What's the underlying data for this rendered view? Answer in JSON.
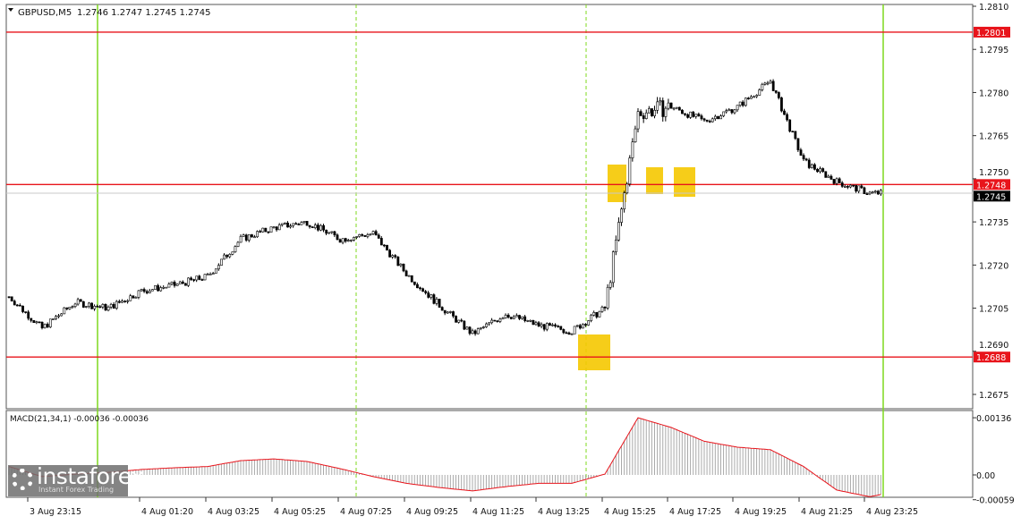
{
  "header": {
    "symbol": "GBPUSD,M5",
    "ohlc": "1.2746 1.2747 1.2745 1.2745"
  },
  "macd_label": "MACD(21,34,1) -0.00036 -0.00036",
  "logo": {
    "name": "instaforex",
    "tagline": "Instant Forex Trading"
  },
  "colors": {
    "level": "#e8141b",
    "bid": "#000000",
    "vline": "#7fd81e",
    "highlight": "#f5c800",
    "candle": "#000000",
    "macd_hist": "#a9a9a9",
    "macd_signal": "#e8141b"
  },
  "chart_data": [
    {
      "type": "candlestick",
      "timeframe": "M5",
      "ylim": [
        1.2675,
        1.281
      ],
      "y_ticks": [
        "1.2810",
        "1.2795",
        "1.2780",
        "1.2765",
        "1.2750",
        "1.2735",
        "1.2720",
        "1.2705",
        "1.2690",
        "1.2675"
      ],
      "x_ticks": [
        "3 Aug 23:15",
        "4 Aug 01:20",
        "4 Aug 03:25",
        "4 Aug 05:25",
        "4 Aug 07:25",
        "4 Aug 09:25",
        "4 Aug 11:25",
        "4 Aug 13:25",
        "4 Aug 15:25",
        "4 Aug 17:25",
        "4 Aug 19:25",
        "4 Aug 21:25",
        "4 Aug 23:25"
      ],
      "hourly_closes": [
        1.2709,
        1.2698,
        1.2707,
        1.2705,
        1.2711,
        1.2713,
        1.2716,
        1.2729,
        1.2733,
        1.2735,
        1.2729,
        1.2731,
        1.2717,
        1.2706,
        1.2696,
        1.2703,
        1.2699,
        1.2697,
        1.2705,
        1.2773,
        1.2775,
        1.277,
        1.2775,
        1.2784,
        1.2756,
        1.2749,
        1.2745,
        1.2745
      ],
      "levels": [
        {
          "price": "1.2801",
          "color": "#e8141b"
        },
        {
          "price": "1.2748",
          "color": "#e8141b"
        },
        {
          "price": "1.2688",
          "color": "#e8141b"
        }
      ],
      "bid": "1.2745",
      "grid": false
    },
    {
      "type": "bar+line",
      "name": "MACD(21,34,1)",
      "ylim": [
        -0.00059,
        0.00136
      ],
      "y_ticks": [
        "0.00136",
        "0.00",
        "-0.00059"
      ],
      "hourly_values": [
        0.0002,
        -4e-05,
        2e-05,
        6e-05,
        0.00013,
        0.00017,
        0.0002,
        0.00034,
        0.00038,
        0.00032,
        0.00015,
        -4e-05,
        -0.0002,
        -0.0003,
        -0.00038,
        -0.00028,
        -0.0002,
        -0.0002,
        2e-05,
        0.00136,
        0.00113,
        0.0008,
        0.00066,
        0.0006,
        0.0002,
        -0.00036,
        -0.00052,
        -0.00036
      ]
    }
  ]
}
